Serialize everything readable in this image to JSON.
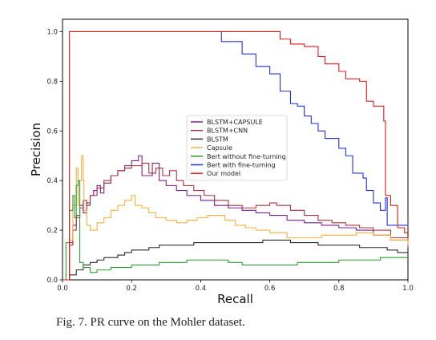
{
  "chart_data": {
    "type": "line",
    "title": "",
    "xlabel": "Recall",
    "ylabel": "Precision",
    "xlim": [
      0.0,
      1.0
    ],
    "ylim": [
      0.0,
      1.05
    ],
    "xticks": [
      "0.0",
      "0.2",
      "0.4",
      "0.6",
      "0.8",
      "1.0"
    ],
    "yticks": [
      "0.0",
      "0.2",
      "0.4",
      "0.6",
      "0.8",
      "1.0"
    ],
    "grid": false,
    "legend_position": "center",
    "series": [
      {
        "name": "BLSTM+CAPSULE",
        "color": "#7b1f8f",
        "points": [
          [
            0.0,
            0.0
          ],
          [
            0.02,
            0.15
          ],
          [
            0.03,
            0.22
          ],
          [
            0.04,
            0.26
          ],
          [
            0.05,
            0.3
          ],
          [
            0.06,
            0.27
          ],
          [
            0.07,
            0.31
          ],
          [
            0.08,
            0.34
          ],
          [
            0.09,
            0.36
          ],
          [
            0.1,
            0.38
          ],
          [
            0.11,
            0.35
          ],
          [
            0.12,
            0.39
          ],
          [
            0.14,
            0.42
          ],
          [
            0.16,
            0.44
          ],
          [
            0.18,
            0.46
          ],
          [
            0.2,
            0.48
          ],
          [
            0.22,
            0.5
          ],
          [
            0.23,
            0.42
          ],
          [
            0.26,
            0.47
          ],
          [
            0.28,
            0.4
          ],
          [
            0.3,
            0.38
          ],
          [
            0.33,
            0.36
          ],
          [
            0.36,
            0.34
          ],
          [
            0.4,
            0.32
          ],
          [
            0.44,
            0.3
          ],
          [
            0.48,
            0.29
          ],
          [
            0.52,
            0.28
          ],
          [
            0.56,
            0.27
          ],
          [
            0.6,
            0.26
          ],
          [
            0.65,
            0.24
          ],
          [
            0.7,
            0.23
          ],
          [
            0.75,
            0.22
          ],
          [
            0.8,
            0.21
          ],
          [
            0.85,
            0.2
          ],
          [
            0.9,
            0.18
          ],
          [
            0.95,
            0.16
          ],
          [
            1.0,
            0.15
          ]
        ]
      },
      {
        "name": "BLSTM+CNN",
        "color": "#a8323e",
        "points": [
          [
            0.0,
            0.0
          ],
          [
            0.02,
            0.14
          ],
          [
            0.03,
            0.2
          ],
          [
            0.04,
            0.25
          ],
          [
            0.05,
            0.29
          ],
          [
            0.06,
            0.32
          ],
          [
            0.07,
            0.3
          ],
          [
            0.08,
            0.34
          ],
          [
            0.1,
            0.37
          ],
          [
            0.12,
            0.4
          ],
          [
            0.14,
            0.42
          ],
          [
            0.16,
            0.44
          ],
          [
            0.18,
            0.45
          ],
          [
            0.2,
            0.46
          ],
          [
            0.23,
            0.47
          ],
          [
            0.25,
            0.43
          ],
          [
            0.27,
            0.45
          ],
          [
            0.29,
            0.42
          ],
          [
            0.31,
            0.44
          ],
          [
            0.33,
            0.4
          ],
          [
            0.35,
            0.38
          ],
          [
            0.38,
            0.36
          ],
          [
            0.41,
            0.34
          ],
          [
            0.44,
            0.32
          ],
          [
            0.48,
            0.3
          ],
          [
            0.52,
            0.29
          ],
          [
            0.56,
            0.3
          ],
          [
            0.6,
            0.31
          ],
          [
            0.62,
            0.3
          ],
          [
            0.66,
            0.28
          ],
          [
            0.7,
            0.26
          ],
          [
            0.74,
            0.24
          ],
          [
            0.78,
            0.23
          ],
          [
            0.82,
            0.22
          ],
          [
            0.86,
            0.21
          ],
          [
            0.9,
            0.2
          ],
          [
            0.95,
            0.17
          ],
          [
            1.0,
            0.13
          ]
        ]
      },
      {
        "name": "BLSTM",
        "color": "#2b2b2b",
        "points": [
          [
            0.0,
            0.0
          ],
          [
            0.02,
            0.02
          ],
          [
            0.04,
            0.04
          ],
          [
            0.06,
            0.06
          ],
          [
            0.08,
            0.07
          ],
          [
            0.1,
            0.08
          ],
          [
            0.12,
            0.09
          ],
          [
            0.14,
            0.09
          ],
          [
            0.16,
            0.1
          ],
          [
            0.18,
            0.11
          ],
          [
            0.2,
            0.12
          ],
          [
            0.22,
            0.12
          ],
          [
            0.25,
            0.13
          ],
          [
            0.28,
            0.14
          ],
          [
            0.3,
            0.14
          ],
          [
            0.34,
            0.14
          ],
          [
            0.38,
            0.15
          ],
          [
            0.42,
            0.15
          ],
          [
            0.46,
            0.15
          ],
          [
            0.5,
            0.15
          ],
          [
            0.54,
            0.15
          ],
          [
            0.58,
            0.16
          ],
          [
            0.62,
            0.16
          ],
          [
            0.66,
            0.15
          ],
          [
            0.7,
            0.15
          ],
          [
            0.74,
            0.14
          ],
          [
            0.78,
            0.14
          ],
          [
            0.82,
            0.14
          ],
          [
            0.86,
            0.13
          ],
          [
            0.9,
            0.13
          ],
          [
            0.94,
            0.12
          ],
          [
            0.97,
            0.11
          ],
          [
            1.0,
            0.1
          ]
        ]
      },
      {
        "name": "Capsule",
        "color": "#f5b03c",
        "points": [
          [
            0.0,
            0.0
          ],
          [
            0.02,
            0.16
          ],
          [
            0.03,
            0.3
          ],
          [
            0.04,
            0.45
          ],
          [
            0.045,
            0.3
          ],
          [
            0.05,
            0.4
          ],
          [
            0.055,
            0.5
          ],
          [
            0.06,
            0.4
          ],
          [
            0.062,
            0.28
          ],
          [
            0.07,
            0.22
          ],
          [
            0.08,
            0.2
          ],
          [
            0.1,
            0.23
          ],
          [
            0.12,
            0.25
          ],
          [
            0.14,
            0.28
          ],
          [
            0.16,
            0.3
          ],
          [
            0.18,
            0.32
          ],
          [
            0.2,
            0.34
          ],
          [
            0.21,
            0.3
          ],
          [
            0.23,
            0.29
          ],
          [
            0.25,
            0.27
          ],
          [
            0.27,
            0.25
          ],
          [
            0.3,
            0.24
          ],
          [
            0.33,
            0.23
          ],
          [
            0.36,
            0.24
          ],
          [
            0.39,
            0.25
          ],
          [
            0.42,
            0.26
          ],
          [
            0.45,
            0.26
          ],
          [
            0.47,
            0.24
          ],
          [
            0.5,
            0.22
          ],
          [
            0.53,
            0.21
          ],
          [
            0.56,
            0.2
          ],
          [
            0.6,
            0.19
          ],
          [
            0.65,
            0.17
          ],
          [
            0.7,
            0.17
          ],
          [
            0.75,
            0.18
          ],
          [
            0.8,
            0.18
          ],
          [
            0.85,
            0.19
          ],
          [
            0.9,
            0.18
          ],
          [
            0.95,
            0.16
          ],
          [
            1.0,
            0.14
          ]
        ]
      },
      {
        "name": "Bert without fine-turning",
        "color": "#2e9e2e",
        "points": [
          [
            0.0,
            0.0
          ],
          [
            0.01,
            0.15
          ],
          [
            0.02,
            0.28
          ],
          [
            0.03,
            0.34
          ],
          [
            0.035,
            0.25
          ],
          [
            0.04,
            0.38
          ],
          [
            0.045,
            0.4
          ],
          [
            0.05,
            0.07
          ],
          [
            0.06,
            0.05
          ],
          [
            0.08,
            0.03
          ],
          [
            0.1,
            0.04
          ],
          [
            0.12,
            0.04
          ],
          [
            0.14,
            0.05
          ],
          [
            0.16,
            0.05
          ],
          [
            0.18,
            0.05
          ],
          [
            0.2,
            0.06
          ],
          [
            0.24,
            0.06
          ],
          [
            0.28,
            0.07
          ],
          [
            0.32,
            0.07
          ],
          [
            0.36,
            0.08
          ],
          [
            0.4,
            0.08
          ],
          [
            0.44,
            0.08
          ],
          [
            0.48,
            0.07
          ],
          [
            0.52,
            0.06
          ],
          [
            0.56,
            0.06
          ],
          [
            0.6,
            0.06
          ],
          [
            0.64,
            0.06
          ],
          [
            0.68,
            0.07
          ],
          [
            0.72,
            0.07
          ],
          [
            0.76,
            0.07
          ],
          [
            0.8,
            0.08
          ],
          [
            0.84,
            0.08
          ],
          [
            0.88,
            0.08
          ],
          [
            0.92,
            0.09
          ],
          [
            0.96,
            0.09
          ],
          [
            1.0,
            0.09
          ]
        ]
      },
      {
        "name": "Bert with fine-turning",
        "color": "#2030e0",
        "points": [
          [
            0.455,
            1.0
          ],
          [
            0.46,
            0.96
          ],
          [
            0.52,
            0.91
          ],
          [
            0.56,
            0.86
          ],
          [
            0.6,
            0.83
          ],
          [
            0.63,
            0.76
          ],
          [
            0.66,
            0.71
          ],
          [
            0.68,
            0.7
          ],
          [
            0.7,
            0.66
          ],
          [
            0.72,
            0.63
          ],
          [
            0.74,
            0.6
          ],
          [
            0.76,
            0.57
          ],
          [
            0.8,
            0.53
          ],
          [
            0.82,
            0.5
          ],
          [
            0.84,
            0.43
          ],
          [
            0.87,
            0.41
          ],
          [
            0.88,
            0.36
          ],
          [
            0.9,
            0.31
          ],
          [
            0.92,
            0.28
          ],
          [
            0.935,
            0.33
          ],
          [
            0.94,
            0.22
          ],
          [
            0.97,
            0.22
          ],
          [
            1.0,
            0.23
          ]
        ]
      },
      {
        "name": "Our model",
        "color": "#e01b1b",
        "points": [
          [
            0.0,
            0.0
          ],
          [
            0.02,
            0.0
          ],
          [
            0.02,
            1.0
          ],
          [
            0.3,
            1.0
          ],
          [
            0.6,
            1.0
          ],
          [
            0.63,
            1.0
          ],
          [
            0.63,
            0.97
          ],
          [
            0.66,
            0.95
          ],
          [
            0.7,
            0.94
          ],
          [
            0.74,
            0.9
          ],
          [
            0.76,
            0.87
          ],
          [
            0.8,
            0.84
          ],
          [
            0.82,
            0.81
          ],
          [
            0.86,
            0.8
          ],
          [
            0.88,
            0.72
          ],
          [
            0.9,
            0.7
          ],
          [
            0.93,
            0.64
          ],
          [
            0.935,
            0.34
          ],
          [
            0.95,
            0.3
          ],
          [
            0.97,
            0.21
          ],
          [
            0.99,
            0.19
          ],
          [
            1.0,
            0.19
          ]
        ]
      }
    ]
  },
  "caption": "Fig. 7.    PR curve on the Mohler dataset."
}
